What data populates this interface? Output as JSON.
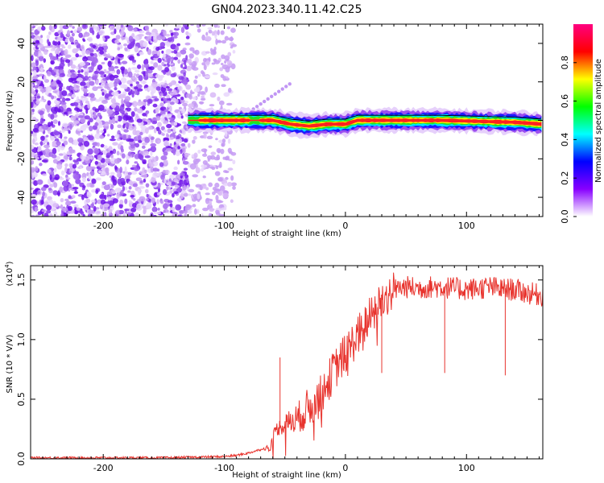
{
  "title": "GN04.2023.340.11.42.C25",
  "chart_data": [
    {
      "type": "heatmap",
      "name": "spectrogram",
      "xlabel": "Height of straight line (km)",
      "ylabel": "Frequency (Hz)",
      "xlim": [
        -260,
        163
      ],
      "ylim": [
        -50,
        50
      ],
      "xticks": [
        -200,
        -100,
        0,
        100
      ],
      "yticks": [
        -40,
        -20,
        0,
        20,
        40
      ],
      "noise_region_km": [
        -260,
        -92
      ],
      "noise_dense_until_km": -130,
      "signal_band_start_km": -130,
      "signal_band_end_km": 163,
      "signal_center_hz": [
        {
          "x": -130,
          "y": 0
        },
        {
          "x": -80,
          "y": 0
        },
        {
          "x": -60,
          "y": 0
        },
        {
          "x": -45,
          "y": -2
        },
        {
          "x": -30,
          "y": -3
        },
        {
          "x": -15,
          "y": -2
        },
        {
          "x": 0,
          "y": -2
        },
        {
          "x": 10,
          "y": 0
        },
        {
          "x": 80,
          "y": 0
        },
        {
          "x": 140,
          "y": -1
        },
        {
          "x": 163,
          "y": -2
        }
      ],
      "colorbar": {
        "label": "Normalized spectral amplitude",
        "ticks": [
          0.0,
          0.2,
          0.4,
          0.6,
          0.8
        ],
        "range": [
          0,
          1
        ],
        "colors": [
          "#ffffff",
          "#8800ff",
          "#0000ff",
          "#00ffff",
          "#00ff00",
          "#ffff00",
          "#ff0000",
          "#ff0080"
        ]
      }
    },
    {
      "type": "line",
      "name": "snr",
      "xlabel": "Height of straight line (km)",
      "ylabel": "SNR (10 * V/V)",
      "yscale_note": "(x10",
      "yscale_exp": "4",
      "yscale_close": ")",
      "xlim": [
        -260,
        163
      ],
      "ylim": [
        0,
        1.62
      ],
      "xticks": [
        -200,
        -100,
        0,
        100
      ],
      "yticks": [
        "0.0",
        "0.5",
        "1.0",
        "1.5"
      ],
      "color": "#e8342e",
      "series": [
        {
          "x": [
            -260,
            -200,
            -150,
            -100,
            -90,
            -80,
            -70,
            -62,
            -58,
            -50,
            -40,
            -30,
            -20,
            -10,
            0,
            10,
            20,
            30,
            40,
            50,
            60,
            70,
            80,
            90,
            100,
            110,
            120,
            130,
            140,
            150,
            163
          ],
          "y": [
            0.01,
            0.01,
            0.01,
            0.02,
            0.03,
            0.05,
            0.08,
            0.1,
            0.25,
            0.3,
            0.35,
            0.45,
            0.55,
            0.75,
            0.9,
            1.05,
            1.2,
            1.35,
            1.43,
            1.45,
            1.44,
            1.45,
            1.45,
            1.44,
            1.43,
            1.44,
            1.45,
            1.43,
            1.43,
            1.4,
            1.38
          ]
        }
      ],
      "dips": [
        {
          "x": -54,
          "y": 0.85
        },
        {
          "x": 30,
          "y": 0.72
        },
        {
          "x": 82,
          "y": 0.72
        },
        {
          "x": 132,
          "y": 0.7
        }
      ]
    }
  ]
}
